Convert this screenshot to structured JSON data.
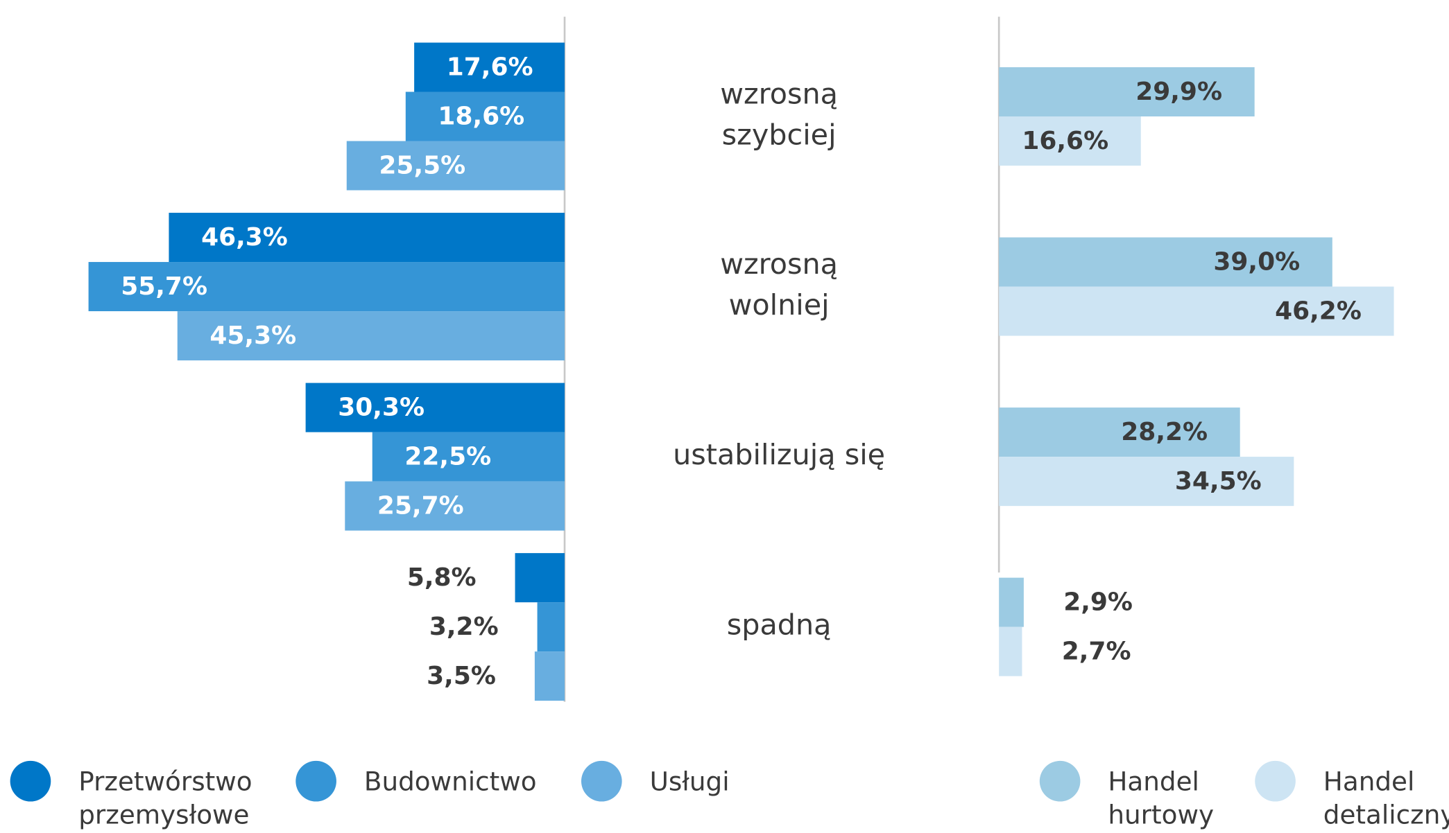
{
  "chart_data": [
    {
      "type": "bar",
      "orientation": "horizontal",
      "x_reversed": true,
      "categories": [
        "wzrosną\nszybciej",
        "wzrosną\nwolniej",
        "ustabilizują się",
        "spadną"
      ],
      "series": [
        {
          "name": "Przetwórstwo\nprzemysłowe",
          "color": "#0077c8",
          "values": [
            17.6,
            46.3,
            30.3,
            5.8
          ],
          "value_labels": [
            "17,6%",
            "46,3%",
            "30,3%",
            "5,8%"
          ]
        },
        {
          "name": "Budownictwo",
          "color": "#3595d6",
          "values": [
            18.6,
            55.7,
            22.5,
            3.2
          ],
          "value_labels": [
            "18,6%",
            "55,7%",
            "22,5%",
            "3,2%"
          ]
        },
        {
          "name": "Usługi",
          "color": "#68aee0",
          "values": [
            25.5,
            45.3,
            25.7,
            3.5
          ],
          "value_labels": [
            "25,5%",
            "45,3%",
            "25,7%",
            "3,5%"
          ]
        }
      ]
    },
    {
      "type": "bar",
      "orientation": "horizontal",
      "x_reversed": false,
      "series": [
        {
          "name": "Handel\nhurtowy",
          "color": "#9ccbe3",
          "values": [
            29.9,
            39.0,
            28.2,
            2.9
          ],
          "value_labels": [
            "29,9%",
            "39,0%",
            "28,2%",
            "2,9%"
          ]
        },
        {
          "name": "Handel\ndetaliczny",
          "color": "#cde4f3",
          "values": [
            16.6,
            46.2,
            34.5,
            2.7
          ],
          "value_labels": [
            "16,6%",
            "46,2%",
            "34,5%",
            "2,7%"
          ]
        }
      ]
    }
  ]
}
